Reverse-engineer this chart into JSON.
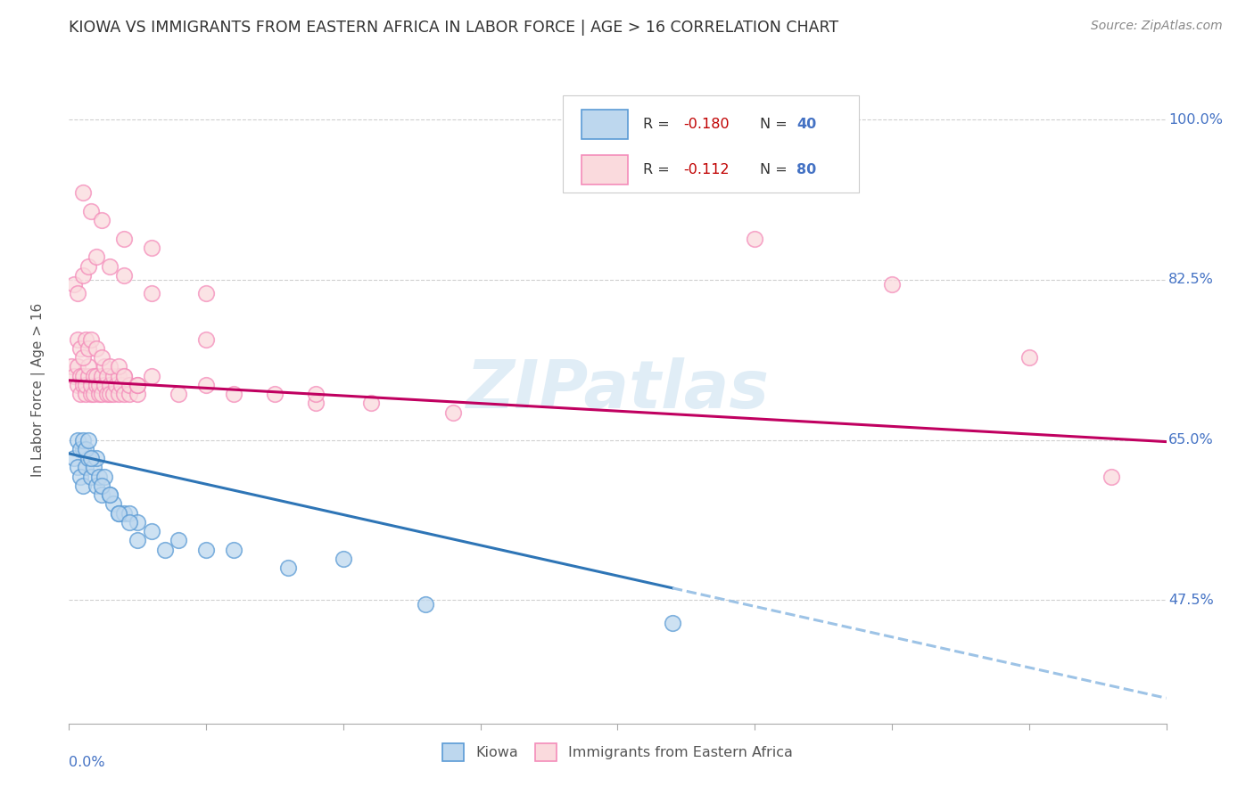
{
  "title": "KIOWA VS IMMIGRANTS FROM EASTERN AFRICA IN LABOR FORCE | AGE > 16 CORRELATION CHART",
  "source_text": "Source: ZipAtlas.com",
  "ylabel_label": "In Labor Force | Age > 16",
  "legend_blue_r": "-0.180",
  "legend_blue_n": "40",
  "legend_pink_r": "-0.112",
  "legend_pink_n": "80",
  "blue_edge": "#5b9bd5",
  "blue_face": "#bdd7ee",
  "pink_edge": "#f48cba",
  "pink_face": "#fadadd",
  "blue_line_color": "#2e75b6",
  "blue_dash_color": "#9dc3e6",
  "pink_line_color": "#c00060",
  "xmin": 0.0,
  "xmax": 0.4,
  "ymin": 0.34,
  "ymax": 1.07,
  "ytick_vals": [
    0.475,
    0.65,
    0.825,
    1.0
  ],
  "ytick_labels": [
    "47.5%",
    "65.0%",
    "82.5%",
    "100.0%"
  ],
  "kiowa_x": [
    0.002,
    0.003,
    0.004,
    0.005,
    0.005,
    0.006,
    0.007,
    0.008,
    0.009,
    0.01,
    0.01,
    0.011,
    0.012,
    0.013,
    0.015,
    0.016,
    0.018,
    0.02,
    0.022,
    0.025,
    0.003,
    0.004,
    0.005,
    0.006,
    0.007,
    0.008,
    0.012,
    0.015,
    0.018,
    0.022,
    0.025,
    0.03,
    0.035,
    0.04,
    0.05,
    0.06,
    0.08,
    0.1,
    0.13,
    0.22
  ],
  "kiowa_y": [
    0.63,
    0.62,
    0.61,
    0.64,
    0.6,
    0.62,
    0.63,
    0.61,
    0.62,
    0.63,
    0.6,
    0.61,
    0.59,
    0.61,
    0.59,
    0.58,
    0.57,
    0.57,
    0.57,
    0.56,
    0.65,
    0.64,
    0.65,
    0.64,
    0.65,
    0.63,
    0.6,
    0.59,
    0.57,
    0.56,
    0.54,
    0.55,
    0.53,
    0.54,
    0.53,
    0.53,
    0.51,
    0.52,
    0.47,
    0.45
  ],
  "eastern_x": [
    0.001,
    0.002,
    0.003,
    0.003,
    0.004,
    0.004,
    0.005,
    0.005,
    0.006,
    0.006,
    0.007,
    0.007,
    0.008,
    0.008,
    0.009,
    0.009,
    0.01,
    0.01,
    0.011,
    0.011,
    0.012,
    0.012,
    0.013,
    0.013,
    0.014,
    0.014,
    0.015,
    0.015,
    0.016,
    0.016,
    0.017,
    0.018,
    0.018,
    0.019,
    0.02,
    0.02,
    0.022,
    0.022,
    0.025,
    0.025,
    0.003,
    0.004,
    0.005,
    0.006,
    0.007,
    0.008,
    0.01,
    0.012,
    0.015,
    0.018,
    0.02,
    0.025,
    0.03,
    0.04,
    0.05,
    0.06,
    0.075,
    0.09,
    0.11,
    0.14,
    0.002,
    0.003,
    0.005,
    0.007,
    0.01,
    0.015,
    0.02,
    0.03,
    0.05,
    0.09,
    0.005,
    0.008,
    0.012,
    0.02,
    0.03,
    0.05,
    0.25,
    0.3,
    0.35,
    0.38
  ],
  "eastern_y": [
    0.73,
    0.72,
    0.71,
    0.73,
    0.7,
    0.72,
    0.71,
    0.72,
    0.7,
    0.71,
    0.72,
    0.73,
    0.7,
    0.71,
    0.72,
    0.7,
    0.71,
    0.72,
    0.7,
    0.71,
    0.7,
    0.72,
    0.71,
    0.73,
    0.7,
    0.72,
    0.71,
    0.7,
    0.72,
    0.7,
    0.71,
    0.72,
    0.7,
    0.71,
    0.72,
    0.7,
    0.7,
    0.71,
    0.7,
    0.71,
    0.76,
    0.75,
    0.74,
    0.76,
    0.75,
    0.76,
    0.75,
    0.74,
    0.73,
    0.73,
    0.72,
    0.71,
    0.72,
    0.7,
    0.71,
    0.7,
    0.7,
    0.69,
    0.69,
    0.68,
    0.82,
    0.81,
    0.83,
    0.84,
    0.85,
    0.84,
    0.83,
    0.81,
    0.76,
    0.7,
    0.92,
    0.9,
    0.89,
    0.87,
    0.86,
    0.81,
    0.87,
    0.82,
    0.74,
    0.61
  ],
  "blue_trend_x0": 0.0,
  "blue_trend_y0": 0.635,
  "blue_trend_x1": 0.22,
  "blue_trend_y1": 0.488,
  "pink_trend_x0": 0.0,
  "pink_trend_y0": 0.715,
  "pink_trend_x1": 0.4,
  "pink_trend_y1": 0.648
}
